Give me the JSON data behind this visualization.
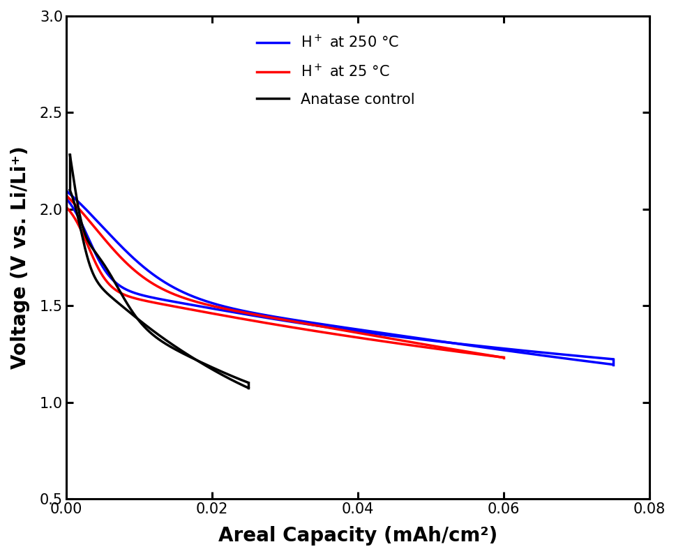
{
  "title": "",
  "xlabel": "Areal Capacity (mAh/cm²)",
  "ylabel": "Voltage (V vs. Li/Li⁺)",
  "xlim": [
    0,
    0.08
  ],
  "ylim": [
    0.5,
    3.0
  ],
  "xticks": [
    0.0,
    0.02,
    0.04,
    0.06,
    0.08
  ],
  "yticks": [
    0.5,
    1.0,
    1.5,
    2.0,
    2.5,
    3.0
  ],
  "colors": [
    "blue",
    "red",
    "black"
  ],
  "linewidth": 2.5,
  "background_color": "white",
  "legend_labels": [
    "H$^+$ at 250 °C",
    "H$^+$ at 25 °C",
    "Anatase control"
  ]
}
